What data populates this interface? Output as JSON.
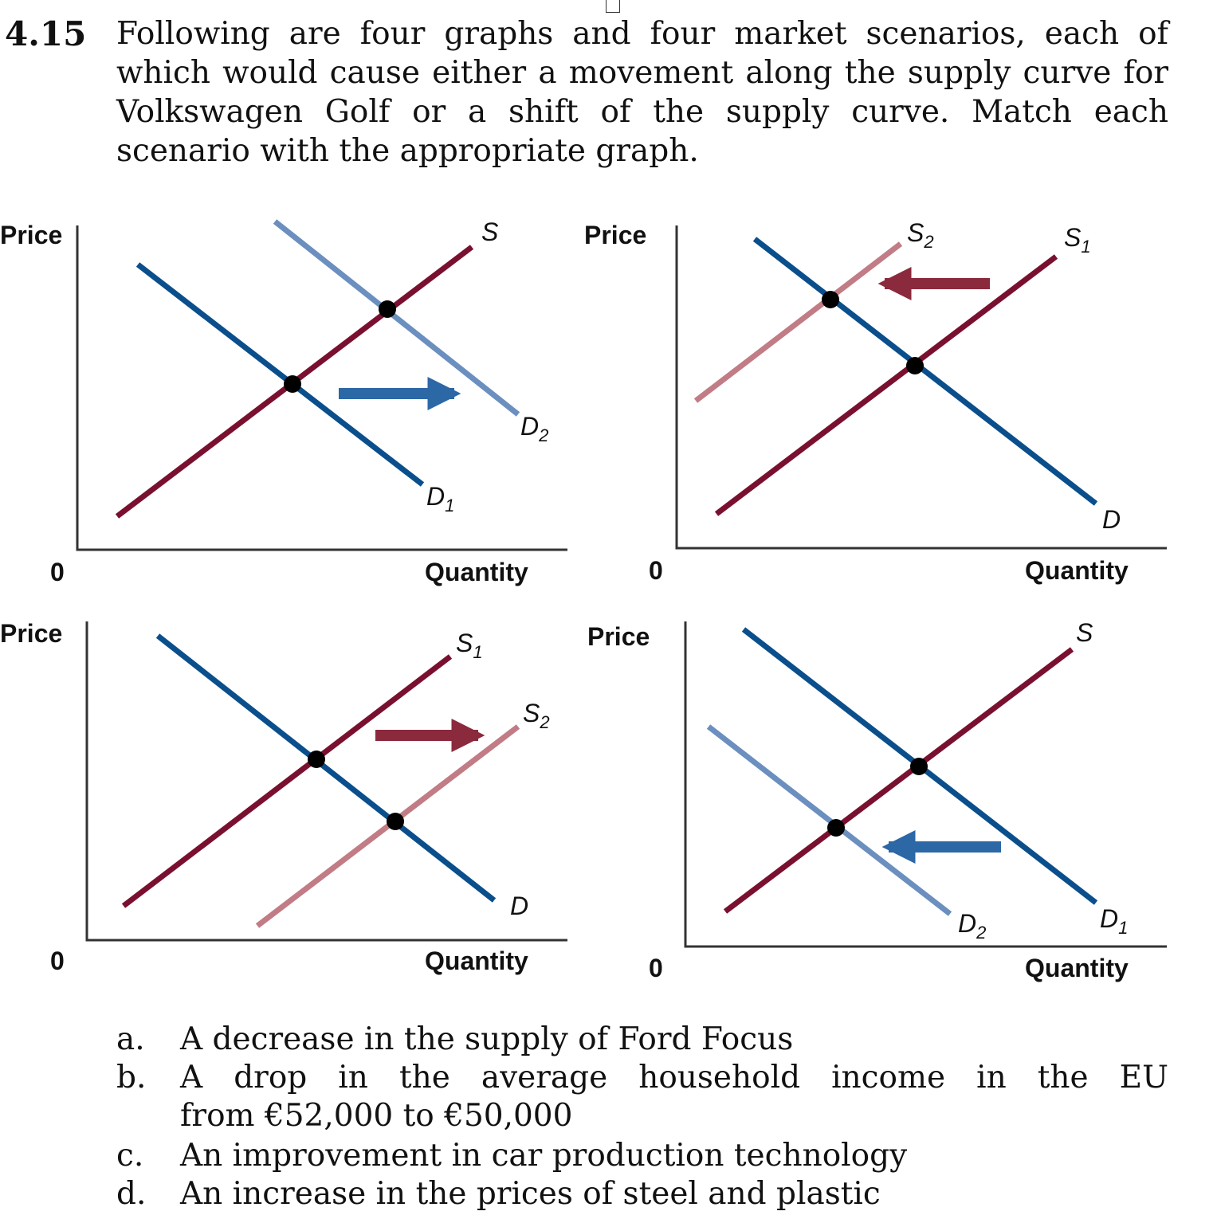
{
  "problem": {
    "number": "4.15",
    "text": "Following are four graphs and four market scenarios, each of which would cause either a movement along the supply curve for Volkswagen Golf or a shift of the supply curve. Match each scenario with the appropriate graph."
  },
  "graphs": [
    {
      "y_label": "Price",
      "x_label": "Quantity",
      "origin": "0",
      "curves": [
        {
          "name": "S",
          "sub": "",
          "kind": "supply"
        },
        {
          "name": "D",
          "sub": "1",
          "kind": "demand"
        },
        {
          "name": "D",
          "sub": "2",
          "kind": "demand-new"
        }
      ],
      "shift": "right"
    },
    {
      "y_label": "Price",
      "x_label": "Quantity",
      "origin": "0",
      "curves": [
        {
          "name": "S",
          "sub": "2",
          "kind": "supply-new"
        },
        {
          "name": "S",
          "sub": "1",
          "kind": "supply"
        },
        {
          "name": "D",
          "sub": "",
          "kind": "demand"
        }
      ],
      "shift": "left"
    },
    {
      "y_label": "Price",
      "x_label": "Quantity",
      "origin": "0",
      "curves": [
        {
          "name": "S",
          "sub": "1",
          "kind": "supply"
        },
        {
          "name": "S",
          "sub": "2",
          "kind": "supply-new"
        },
        {
          "name": "D",
          "sub": "",
          "kind": "demand"
        }
      ],
      "shift": "right"
    },
    {
      "y_label": "Price",
      "x_label": "Quantity",
      "origin": "0",
      "curves": [
        {
          "name": "S",
          "sub": "",
          "kind": "supply"
        },
        {
          "name": "D",
          "sub": "2",
          "kind": "demand-new"
        },
        {
          "name": "D",
          "sub": "1",
          "kind": "demand"
        }
      ],
      "shift": "left"
    }
  ],
  "scenarios": [
    {
      "letter": "a.",
      "text": "A decrease in the supply of Ford Focus"
    },
    {
      "letter": "b.",
      "text_line1": "A drop in the average household income in the EU",
      "text_line2": "from €52,000 to €50,000"
    },
    {
      "letter": "c.",
      "text": "An improvement in car production technology"
    },
    {
      "letter": "d.",
      "text": "An increase in the prices of steel and plastic"
    }
  ],
  "colors": {
    "demand": "#0a4f8c",
    "demand_new": "#6b8fbf",
    "supply": "#7a1030",
    "supply_new": "#c17c85",
    "arrow_blue": "#2c67a6",
    "arrow_red": "#8a2a3c"
  }
}
